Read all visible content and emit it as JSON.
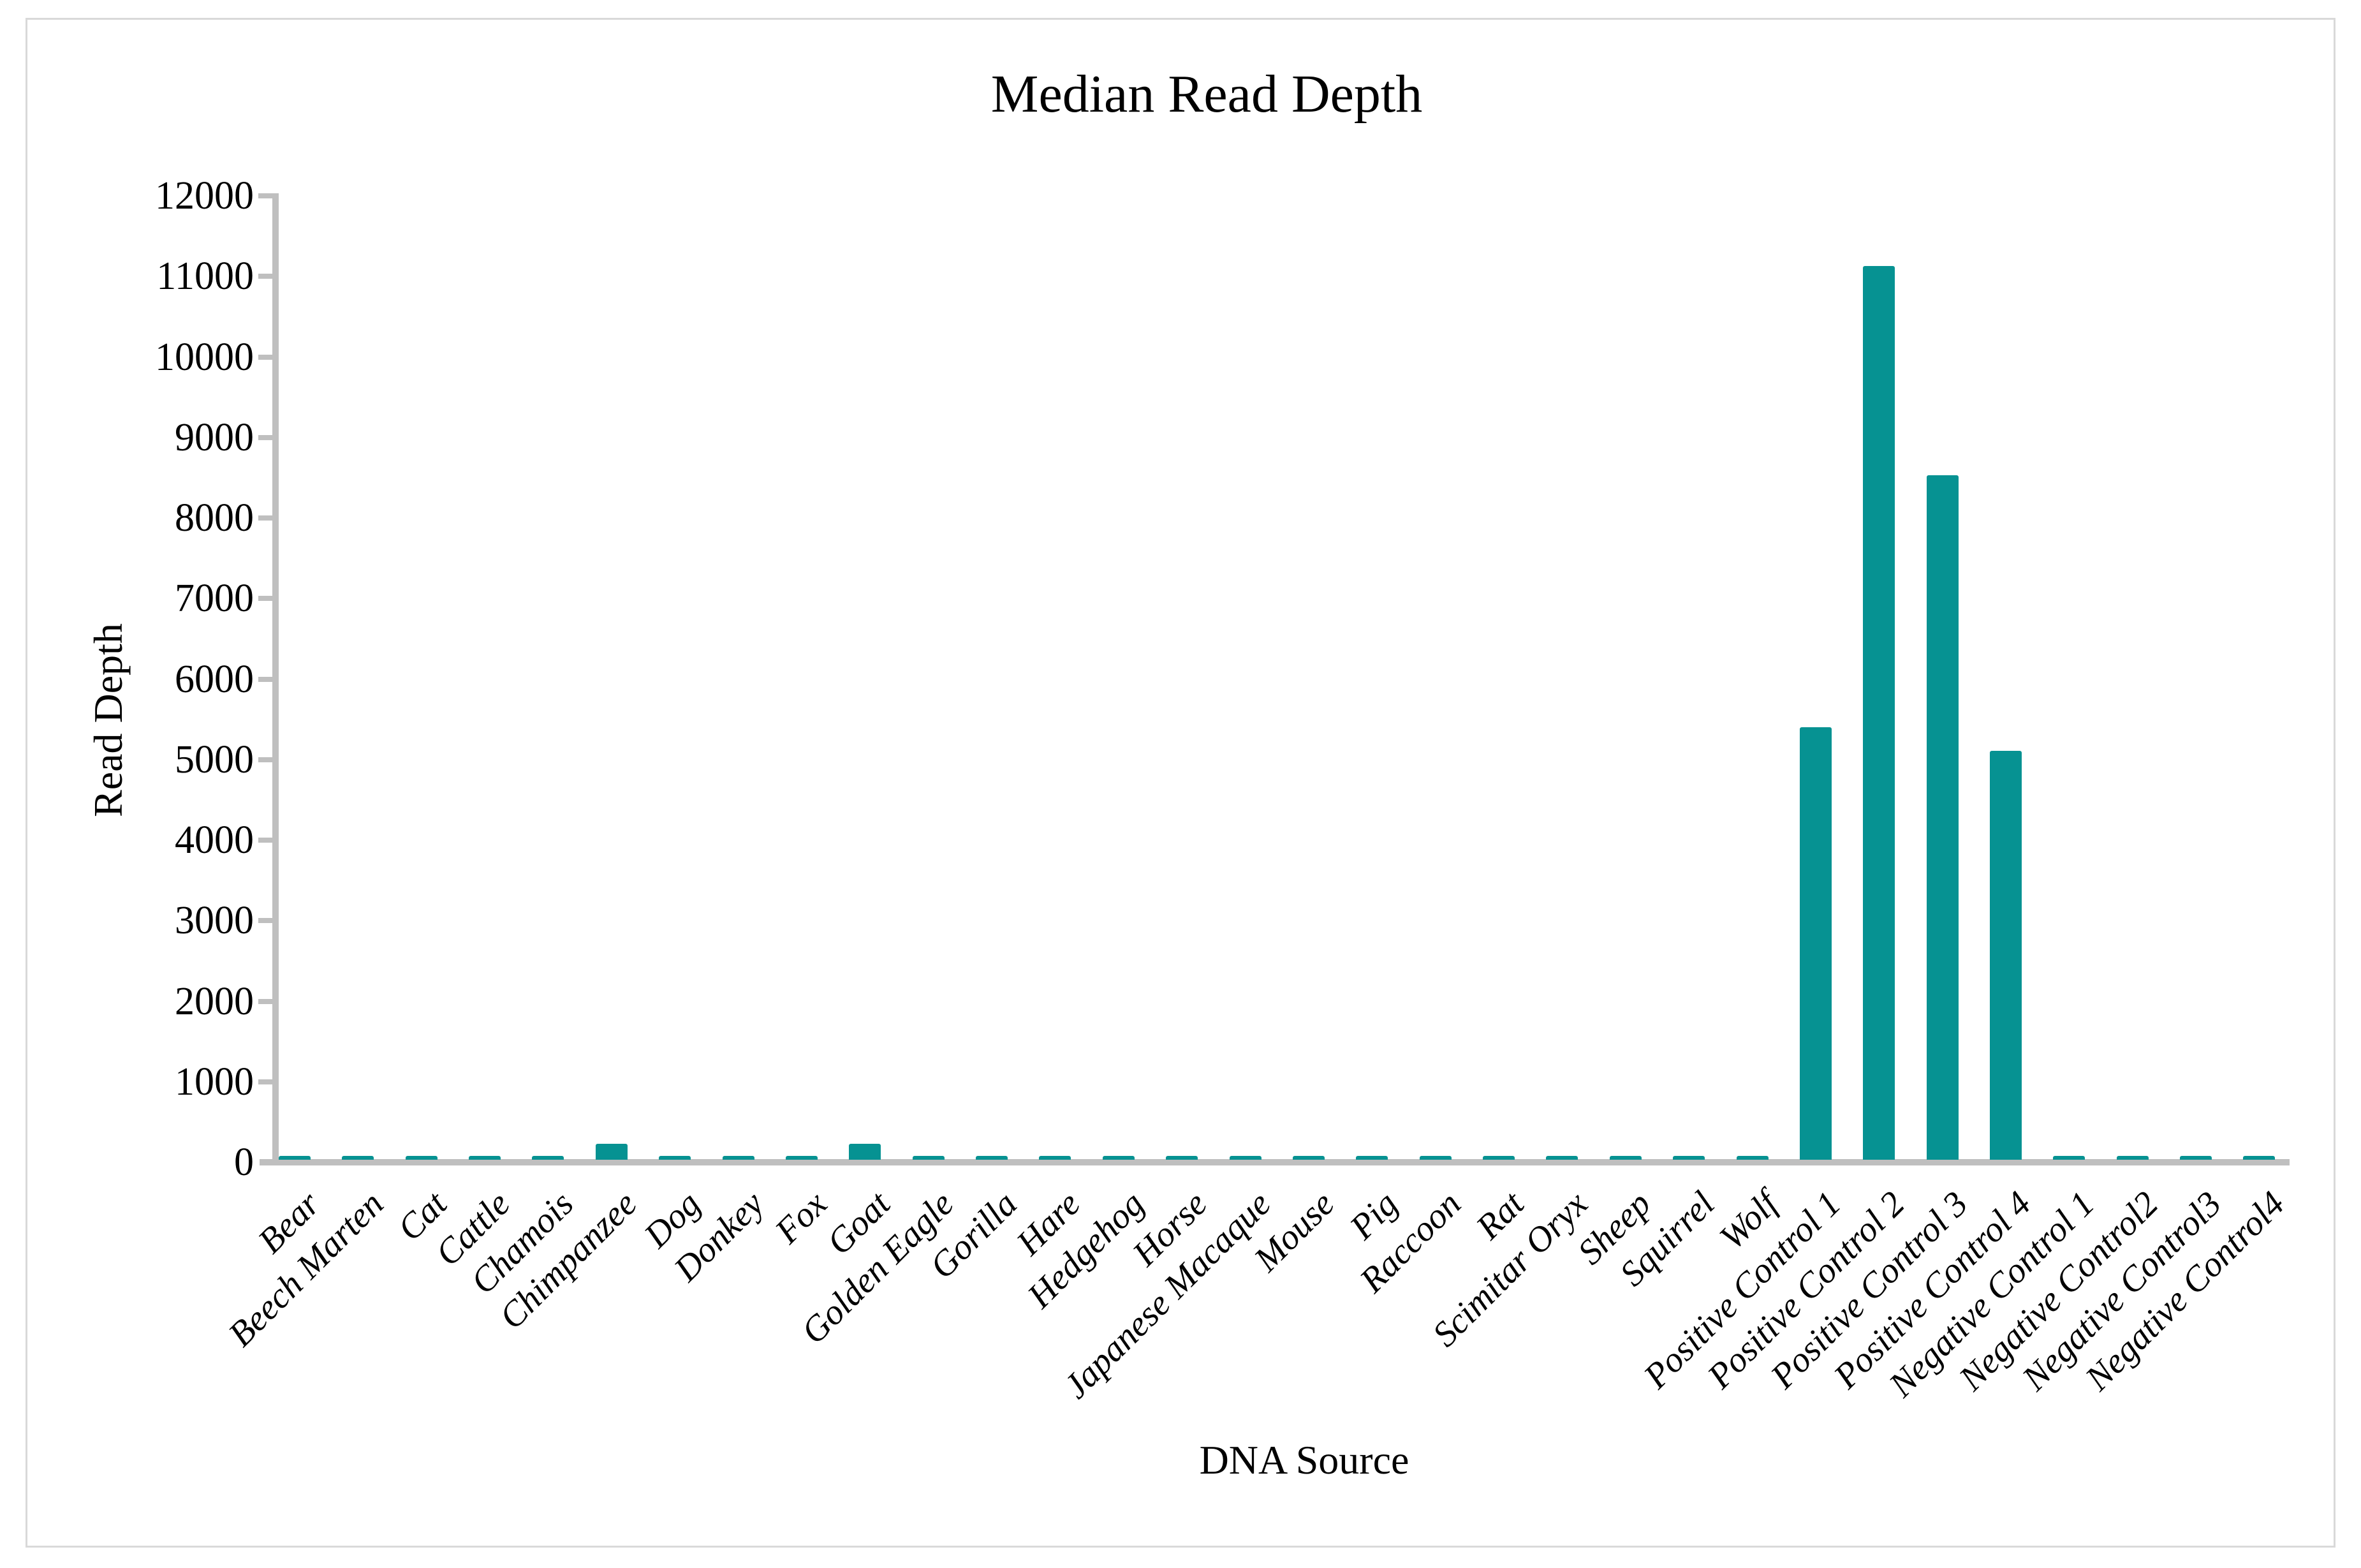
{
  "chart_data": {
    "type": "bar",
    "title": "Median Read Depth",
    "xlabel": "DNA Source",
    "ylabel": "Read Depth",
    "categories": [
      "Bear",
      "Beech Marten",
      "Cat",
      "Cattle",
      "Chamois",
      "Chimpanzee",
      "Dog",
      "Donkey",
      "Fox",
      "Goat",
      "Golden Eagle",
      "Gorilla",
      "Hare",
      "Hedgehog",
      "Horse",
      "Japanese Macaque",
      "Mouse",
      "Pig",
      "Raccoon",
      "Rat",
      "Scimitar Oryx",
      "Sheep",
      "Squirrel",
      "Wolf",
      "Positive Control 1",
      "Positive Control 2",
      "Positive Control 3",
      "Positive Control 4",
      "Negative Control 1",
      "Negative Control2",
      "Negative Control3",
      "Negative Control4"
    ],
    "values": [
      50,
      50,
      50,
      50,
      50,
      200,
      50,
      50,
      50,
      200,
      50,
      50,
      50,
      50,
      50,
      50,
      50,
      50,
      50,
      50,
      50,
      50,
      50,
      50,
      5370,
      11100,
      8500,
      5075,
      50,
      50,
      50,
      50
    ],
    "ylim": [
      0,
      12000
    ],
    "y_ticks": [
      0,
      1000,
      2000,
      3000,
      4000,
      5000,
      6000,
      7000,
      8000,
      9000,
      10000,
      11000,
      12000
    ],
    "grid": "off",
    "legend": "none",
    "bar_color": "#069292",
    "axis_color": "#bfbfbf",
    "border_color": "#d9d9d9",
    "text_color": "#000000"
  }
}
